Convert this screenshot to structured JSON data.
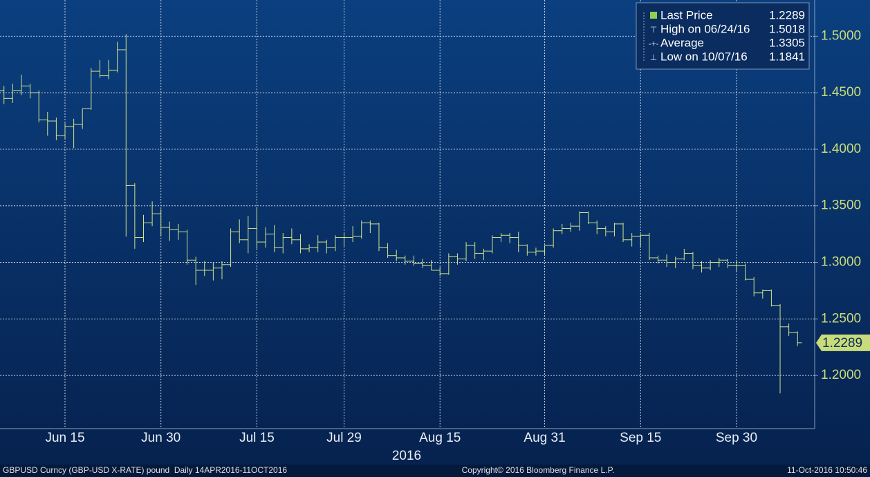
{
  "chart_data": {
    "type": "ohlc",
    "color": "#d2e68a",
    "ylim": [
      1.153,
      1.532
    ],
    "yticks": [
      {
        "value": 1.2,
        "label": "1.2000"
      },
      {
        "value": 1.25,
        "label": "1.2500"
      },
      {
        "value": 1.3,
        "label": "1.3000"
      },
      {
        "value": 1.35,
        "label": "1.3500"
      },
      {
        "value": 1.4,
        "label": "1.4000"
      },
      {
        "value": 1.45,
        "label": "1.4500"
      },
      {
        "value": 1.5,
        "label": "1.5000"
      }
    ],
    "grid": true,
    "categories": [
      null,
      null,
      null,
      null,
      null,
      null,
      null,
      "Jun 15",
      null,
      null,
      null,
      null,
      null,
      null,
      null,
      null,
      null,
      null,
      "Jun 30",
      null,
      null,
      null,
      null,
      null,
      null,
      null,
      null,
      null,
      null,
      "Jul 15",
      null,
      null,
      null,
      null,
      null,
      null,
      null,
      null,
      null,
      "Jul 29",
      null,
      null,
      null,
      null,
      null,
      null,
      null,
      null,
      null,
      null,
      "Aug 15",
      null,
      null,
      null,
      null,
      null,
      null,
      null,
      null,
      null,
      null,
      null,
      "Aug 31",
      null,
      null,
      null,
      null,
      null,
      null,
      null,
      null,
      null,
      null,
      "Sep 15",
      null,
      null,
      null,
      null,
      null,
      null,
      null,
      null,
      null,
      null,
      "Sep 30",
      null,
      null,
      null,
      null,
      null,
      null,
      null
    ],
    "year_label": "2016",
    "series": [
      {
        "open": [
          1.452,
          1.445,
          1.452,
          1.456,
          1.45,
          1.426,
          1.425,
          1.412,
          1.42,
          1.422,
          1.436,
          1.469,
          1.465,
          1.47,
          1.488,
          1.368,
          1.322,
          1.335,
          1.343,
          1.331,
          1.329,
          1.327,
          1.302,
          1.293,
          1.293,
          1.295,
          1.298,
          1.327,
          1.32,
          1.33,
          1.318,
          1.325,
          1.313,
          1.322,
          1.32,
          1.312,
          1.313,
          1.318,
          1.313,
          1.322,
          1.322,
          1.323,
          1.335,
          1.334,
          1.313,
          1.306,
          1.304,
          1.301,
          1.299,
          1.297,
          1.293,
          1.29,
          1.305,
          1.303,
          1.315,
          1.308,
          1.31,
          1.322,
          1.324,
          1.322,
          1.315,
          1.309,
          1.31,
          1.315,
          1.328,
          1.33,
          1.332,
          1.344,
          1.335,
          1.33,
          1.327,
          1.334,
          1.32,
          1.323,
          1.324,
          1.304,
          1.302,
          1.3,
          1.303,
          1.308,
          1.297,
          1.295,
          1.3,
          1.302,
          1.297,
          1.297,
          1.285,
          1.273,
          1.275,
          1.262,
          1.243,
          1.238
        ],
        "high": [
          1.456,
          1.458,
          1.466,
          1.458,
          1.452,
          1.433,
          1.428,
          1.423,
          1.427,
          1.436,
          1.472,
          1.479,
          1.479,
          1.495,
          1.5018,
          1.37,
          1.342,
          1.354,
          1.347,
          1.336,
          1.334,
          1.329,
          1.305,
          1.301,
          1.3,
          1.301,
          1.33,
          1.338,
          1.341,
          1.349,
          1.331,
          1.333,
          1.326,
          1.33,
          1.325,
          1.316,
          1.324,
          1.32,
          1.324,
          1.326,
          1.332,
          1.337,
          1.337,
          1.335,
          1.317,
          1.311,
          1.306,
          1.306,
          1.303,
          1.302,
          1.296,
          1.308,
          1.308,
          1.318,
          1.318,
          1.312,
          1.324,
          1.326,
          1.326,
          1.327,
          1.316,
          1.313,
          1.315,
          1.33,
          1.334,
          1.335,
          1.345,
          1.345,
          1.337,
          1.332,
          1.335,
          1.335,
          1.326,
          1.325,
          1.326,
          1.306,
          1.307,
          1.305,
          1.312,
          1.309,
          1.301,
          1.302,
          1.304,
          1.303,
          1.302,
          1.299,
          1.287,
          1.276,
          1.276,
          1.263,
          1.246,
          1.239
        ],
        "low": [
          1.44,
          1.441,
          1.448,
          1.445,
          1.424,
          1.412,
          1.408,
          1.409,
          1.401,
          1.418,
          1.435,
          1.463,
          1.462,
          1.468,
          1.3229,
          1.312,
          1.318,
          1.332,
          1.323,
          1.319,
          1.32,
          1.298,
          1.28,
          1.288,
          1.284,
          1.285,
          1.296,
          1.317,
          1.308,
          1.312,
          1.313,
          1.309,
          1.308,
          1.316,
          1.308,
          1.309,
          1.309,
          1.308,
          1.31,
          1.314,
          1.318,
          1.321,
          1.326,
          1.31,
          1.304,
          1.301,
          1.298,
          1.297,
          1.295,
          1.293,
          1.288,
          1.289,
          1.298,
          1.301,
          1.303,
          1.302,
          1.308,
          1.318,
          1.317,
          1.309,
          1.306,
          1.306,
          1.307,
          1.313,
          1.325,
          1.327,
          1.328,
          1.334,
          1.325,
          1.323,
          1.323,
          1.318,
          1.314,
          1.313,
          1.302,
          1.299,
          1.296,
          1.295,
          1.302,
          1.294,
          1.291,
          1.293,
          1.296,
          1.295,
          1.292,
          1.284,
          1.27,
          1.268,
          1.261,
          1.1841,
          1.235,
          1.226
        ],
        "close": [
          1.445,
          1.452,
          1.456,
          1.45,
          1.426,
          1.425,
          1.412,
          1.42,
          1.422,
          1.436,
          1.469,
          1.465,
          1.47,
          1.488,
          1.3679,
          1.322,
          1.335,
          1.343,
          1.331,
          1.329,
          1.327,
          1.302,
          1.293,
          1.293,
          1.295,
          1.298,
          1.327,
          1.32,
          1.33,
          1.318,
          1.325,
          1.313,
          1.322,
          1.32,
          1.312,
          1.313,
          1.318,
          1.313,
          1.322,
          1.322,
          1.323,
          1.335,
          1.334,
          1.313,
          1.306,
          1.304,
          1.301,
          1.299,
          1.297,
          1.293,
          1.29,
          1.305,
          1.303,
          1.315,
          1.308,
          1.31,
          1.322,
          1.324,
          1.322,
          1.315,
          1.309,
          1.31,
          1.315,
          1.328,
          1.33,
          1.332,
          1.344,
          1.335,
          1.33,
          1.327,
          1.334,
          1.32,
          1.323,
          1.324,
          1.304,
          1.302,
          1.3,
          1.303,
          1.308,
          1.297,
          1.295,
          1.3,
          1.302,
          1.297,
          1.297,
          1.285,
          1.273,
          1.275,
          1.262,
          1.243,
          1.238,
          1.2289
        ]
      }
    ],
    "legend": [
      {
        "label": "Last Price",
        "value": 1.2289
      },
      {
        "label": "High on 06/24/16",
        "value": 1.5018
      },
      {
        "label": "Average",
        "value": 1.3305
      },
      {
        "label": "Low on 10/07/16",
        "value": 1.1841
      }
    ],
    "footer": {
      "left": "GBPUSD Curncy (GBP-USD X-RATE) pound  Daily 14APR2016-11OCT2016",
      "center": "Copyright© 2016 Bloomberg Finance L.P.",
      "right": "11-Oct-2016 10:50:46"
    }
  }
}
